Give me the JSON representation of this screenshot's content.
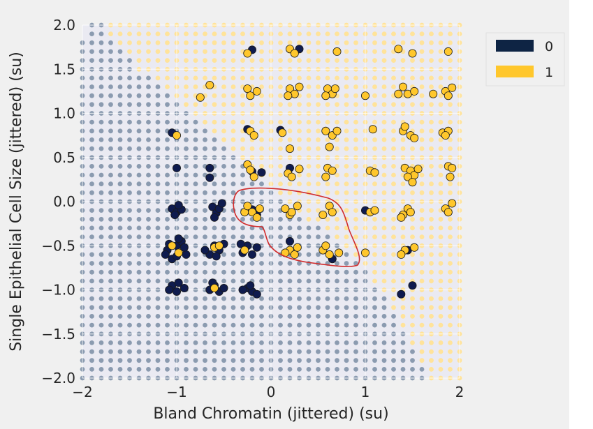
{
  "chart_data": {
    "type": "scatter",
    "title": "",
    "xlabel": "Bland Chromatin (jittered) (su)",
    "ylabel": "Single Epithelial Cell Size (jittered) (su)",
    "xlim": [
      -2,
      2
    ],
    "ylim": [
      -2,
      2
    ],
    "x_ticks": [
      "−2",
      "−1",
      "0",
      "1",
      "2"
    ],
    "y_ticks": [
      "2.0",
      "1.5",
      "1.0",
      "0.5",
      "0.0",
      "−0.5",
      "−1.0",
      "−1.5",
      "−2.0"
    ],
    "grid": true,
    "legend": {
      "placement": "upper-right-outside",
      "entries": [
        "0",
        "1"
      ]
    },
    "colors": {
      "class_0": "#0f1b4e",
      "class_1": "#ffc72c",
      "region_0": "#8b9bb0",
      "region_1": "#ffe39a",
      "legend_0": "#0e2444",
      "plot_background": "#eaeaf2",
      "annotation": "#d12b2b"
    },
    "decision_boundary": {
      "description": "class 0 region to the lower-left of a staircase boundary; class 1 region to the upper-right",
      "points": [
        [
          -1.75,
          2.0
        ],
        [
          -1.7,
          1.9
        ],
        [
          -1.6,
          1.75
        ],
        [
          -1.4,
          1.5
        ],
        [
          -1.1,
          1.25
        ],
        [
          -0.8,
          1.0
        ],
        [
          -0.55,
          0.75
        ],
        [
          -0.35,
          0.5
        ],
        [
          -0.15,
          0.25
        ],
        [
          0.05,
          0.1
        ],
        [
          0.2,
          0.0
        ],
        [
          0.4,
          -0.2
        ],
        [
          0.7,
          -0.45
        ],
        [
          1.0,
          -0.75
        ],
        [
          1.2,
          -1.05
        ],
        [
          1.35,
          -1.35
        ],
        [
          1.5,
          -1.65
        ],
        [
          1.65,
          -1.9
        ],
        [
          1.7,
          -2.0
        ]
      ]
    },
    "series": [
      {
        "name": "0",
        "points": [
          [
            -0.2,
            1.72
          ],
          [
            0.3,
            1.73
          ],
          [
            -0.25,
            0.82
          ],
          [
            0.1,
            0.81
          ],
          [
            -1.05,
            0.78
          ],
          [
            -1.0,
            0.38
          ],
          [
            -0.65,
            0.38
          ],
          [
            -0.65,
            0.27
          ],
          [
            -0.2,
            0.34
          ],
          [
            -0.1,
            0.33
          ],
          [
            0.2,
            0.38
          ],
          [
            -1.05,
            -0.08
          ],
          [
            -1.0,
            -0.12
          ],
          [
            -0.95,
            -0.09
          ],
          [
            -1.02,
            -0.15
          ],
          [
            -0.98,
            -0.04
          ],
          [
            -0.62,
            -0.06
          ],
          [
            -0.58,
            -0.13
          ],
          [
            -0.55,
            -0.08
          ],
          [
            -0.6,
            -0.18
          ],
          [
            -0.52,
            -0.02
          ],
          [
            -0.2,
            -0.09
          ],
          [
            -0.15,
            -0.15
          ],
          [
            0.2,
            -0.45
          ],
          [
            0.65,
            -0.65
          ],
          [
            1.0,
            -0.1
          ],
          [
            1.45,
            -0.55
          ],
          [
            1.5,
            -0.95
          ],
          [
            1.38,
            -1.05
          ],
          [
            -1.0,
            -0.5
          ],
          [
            -1.1,
            -0.55
          ],
          [
            -0.9,
            -0.6
          ],
          [
            -0.95,
            -0.45
          ],
          [
            -1.05,
            -0.65
          ],
          [
            -1.08,
            -0.48
          ],
          [
            -0.92,
            -0.52
          ],
          [
            -1.0,
            -0.62
          ],
          [
            -0.98,
            -0.42
          ],
          [
            -1.12,
            -0.6
          ],
          [
            -0.6,
            -0.5
          ],
          [
            -0.65,
            -0.6
          ],
          [
            -0.55,
            -0.55
          ],
          [
            -0.5,
            -0.48
          ],
          [
            -0.7,
            -0.55
          ],
          [
            -0.58,
            -0.62
          ],
          [
            -0.25,
            -0.5
          ],
          [
            -0.3,
            -0.58
          ],
          [
            -0.2,
            -0.6
          ],
          [
            -0.15,
            -0.52
          ],
          [
            -0.32,
            -0.48
          ],
          [
            -1.05,
            -0.95
          ],
          [
            -1.0,
            -1.02
          ],
          [
            -0.92,
            -0.98
          ],
          [
            -0.98,
            -0.92
          ],
          [
            -1.08,
            -1.0
          ],
          [
            -0.6,
            -0.95
          ],
          [
            -0.55,
            -1.02
          ],
          [
            -0.65,
            -1.0
          ],
          [
            -0.62,
            -0.92
          ],
          [
            -0.5,
            -0.98
          ],
          [
            -0.25,
            -0.98
          ],
          [
            -0.2,
            -1.02
          ],
          [
            -0.3,
            -1.0
          ],
          [
            -0.15,
            -1.05
          ],
          [
            -0.22,
            -0.95
          ]
        ]
      },
      {
        "name": "1",
        "points": [
          [
            -0.25,
            1.68
          ],
          [
            0.2,
            1.73
          ],
          [
            0.25,
            1.68
          ],
          [
            0.7,
            1.7
          ],
          [
            1.35,
            1.73
          ],
          [
            1.5,
            1.68
          ],
          [
            1.88,
            1.7
          ],
          [
            -0.75,
            1.18
          ],
          [
            -0.65,
            1.32
          ],
          [
            -0.25,
            1.28
          ],
          [
            -0.15,
            1.25
          ],
          [
            -0.22,
            1.2
          ],
          [
            0.2,
            1.28
          ],
          [
            0.25,
            1.22
          ],
          [
            0.18,
            1.2
          ],
          [
            0.3,
            1.3
          ],
          [
            0.6,
            1.28
          ],
          [
            0.65,
            1.22
          ],
          [
            0.58,
            1.2
          ],
          [
            0.68,
            1.28
          ],
          [
            1.0,
            1.2
          ],
          [
            1.4,
            1.3
          ],
          [
            1.45,
            1.22
          ],
          [
            1.35,
            1.22
          ],
          [
            1.52,
            1.25
          ],
          [
            1.72,
            1.22
          ],
          [
            1.85,
            1.25
          ],
          [
            1.92,
            1.29
          ],
          [
            1.88,
            1.2
          ],
          [
            -1.0,
            0.75
          ],
          [
            -0.22,
            0.8
          ],
          [
            -0.18,
            0.75
          ],
          [
            0.12,
            0.78
          ],
          [
            0.2,
            0.6
          ],
          [
            0.58,
            0.8
          ],
          [
            0.65,
            0.75
          ],
          [
            0.7,
            0.8
          ],
          [
            0.62,
            0.62
          ],
          [
            1.08,
            0.82
          ],
          [
            1.4,
            0.8
          ],
          [
            1.48,
            0.75
          ],
          [
            1.52,
            0.72
          ],
          [
            1.42,
            0.85
          ],
          [
            1.82,
            0.78
          ],
          [
            1.88,
            0.8
          ],
          [
            1.85,
            0.75
          ],
          [
            -0.25,
            0.42
          ],
          [
            -0.22,
            0.36
          ],
          [
            -0.18,
            0.28
          ],
          [
            0.18,
            0.32
          ],
          [
            0.22,
            0.28
          ],
          [
            0.3,
            0.37
          ],
          [
            0.6,
            0.38
          ],
          [
            0.65,
            0.35
          ],
          [
            0.58,
            0.28
          ],
          [
            1.05,
            0.35
          ],
          [
            1.1,
            0.33
          ],
          [
            1.42,
            0.38
          ],
          [
            1.48,
            0.35
          ],
          [
            1.52,
            0.3
          ],
          [
            1.45,
            0.28
          ],
          [
            1.56,
            0.37
          ],
          [
            1.5,
            0.22
          ],
          [
            1.88,
            0.4
          ],
          [
            1.92,
            0.38
          ],
          [
            1.9,
            0.28
          ],
          [
            -0.28,
            -0.12
          ],
          [
            -0.2,
            -0.12
          ],
          [
            -0.15,
            -0.18
          ],
          [
            -0.25,
            -0.05
          ],
          [
            -0.12,
            -0.08
          ],
          [
            0.15,
            -0.08
          ],
          [
            0.2,
            -0.15
          ],
          [
            0.28,
            -0.05
          ],
          [
            0.22,
            -0.12
          ],
          [
            0.55,
            -0.15
          ],
          [
            0.62,
            -0.05
          ],
          [
            0.65,
            -0.12
          ],
          [
            1.05,
            -0.12
          ],
          [
            1.1,
            -0.1
          ],
          [
            1.4,
            -0.15
          ],
          [
            1.45,
            -0.08
          ],
          [
            1.48,
            -0.12
          ],
          [
            1.38,
            -0.18
          ],
          [
            1.85,
            -0.08
          ],
          [
            1.92,
            -0.02
          ],
          [
            1.88,
            -0.12
          ],
          [
            0.2,
            -0.55
          ],
          [
            0.25,
            -0.6
          ],
          [
            0.15,
            -0.58
          ],
          [
            0.28,
            -0.52
          ],
          [
            0.55,
            -0.55
          ],
          [
            0.62,
            -0.6
          ],
          [
            0.58,
            -0.5
          ],
          [
            0.72,
            -0.58
          ],
          [
            1.0,
            -0.58
          ],
          [
            1.42,
            -0.55
          ],
          [
            1.52,
            -0.52
          ],
          [
            1.38,
            -0.6
          ],
          [
            -1.05,
            -0.5
          ],
          [
            -0.98,
            -0.58
          ],
          [
            -0.6,
            -0.52
          ],
          [
            -0.55,
            -0.5
          ],
          [
            -0.28,
            -0.55
          ],
          [
            -0.6,
            -0.98
          ]
        ]
      }
    ],
    "annotation": {
      "type": "freehand-outline",
      "label": ""
    }
  }
}
